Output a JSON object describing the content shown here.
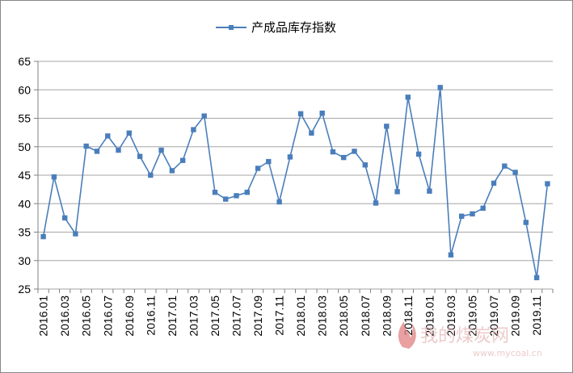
{
  "chart_data": {
    "type": "line",
    "title": "",
    "xlabel": "",
    "ylabel": "",
    "ylim": [
      25,
      65
    ],
    "yticks": [
      25,
      30,
      35,
      40,
      45,
      50,
      55,
      60,
      65
    ],
    "grid": "horizontal",
    "legend_position": "top-center",
    "series_color": "#4a7ebb",
    "x_tick_labels": [
      "2016.01",
      "2016.03",
      "2016.05",
      "2016.07",
      "2016.09",
      "2016.11",
      "2017.01",
      "2017.03",
      "2017.05",
      "2017.07",
      "2017.09",
      "2017.11",
      "2018.01",
      "2018.03",
      "2018.05",
      "2018.07",
      "2018.09",
      "2018.11",
      "2019.01",
      "2019.03",
      "2019.05",
      "2019.07",
      "2019.09",
      "2019.11"
    ],
    "categories": [
      "2016.01",
      "2016.02",
      "2016.03",
      "2016.04",
      "2016.05",
      "2016.06",
      "2016.07",
      "2016.08",
      "2016.09",
      "2016.10",
      "2016.11",
      "2016.12",
      "2017.01",
      "2017.02",
      "2017.03",
      "2017.04",
      "2017.05",
      "2017.06",
      "2017.07",
      "2017.08",
      "2017.09",
      "2017.10",
      "2017.11",
      "2017.12",
      "2018.01",
      "2018.02",
      "2018.03",
      "2018.04",
      "2018.05",
      "2018.06",
      "2018.07",
      "2018.08",
      "2018.09",
      "2018.10",
      "2018.11",
      "2018.12",
      "2019.01",
      "2019.02",
      "2019.03",
      "2019.04",
      "2019.05",
      "2019.06",
      "2019.07",
      "2019.08",
      "2019.09",
      "2019.10",
      "2019.11",
      "2019.12"
    ],
    "series": [
      {
        "name": "产成品库存指数",
        "values": [
          34.2,
          44.7,
          37.5,
          34.7,
          50.1,
          49.2,
          51.9,
          49.4,
          52.4,
          48.3,
          45.0,
          49.4,
          45.8,
          47.6,
          53.0,
          55.4,
          42.0,
          40.8,
          41.4,
          42.0,
          46.2,
          47.4,
          40.3,
          48.2,
          55.8,
          52.4,
          55.9,
          49.1,
          48.1,
          49.2,
          46.8,
          40.1,
          53.6,
          42.1,
          58.7,
          48.7,
          42.2,
          60.4,
          31.0,
          37.8,
          38.2,
          39.2,
          43.6,
          46.6,
          45.5,
          36.7,
          27.0,
          43.5
        ]
      }
    ]
  },
  "watermark": {
    "text": "我的煤炭网",
    "url": "www.mycoal.cn"
  }
}
